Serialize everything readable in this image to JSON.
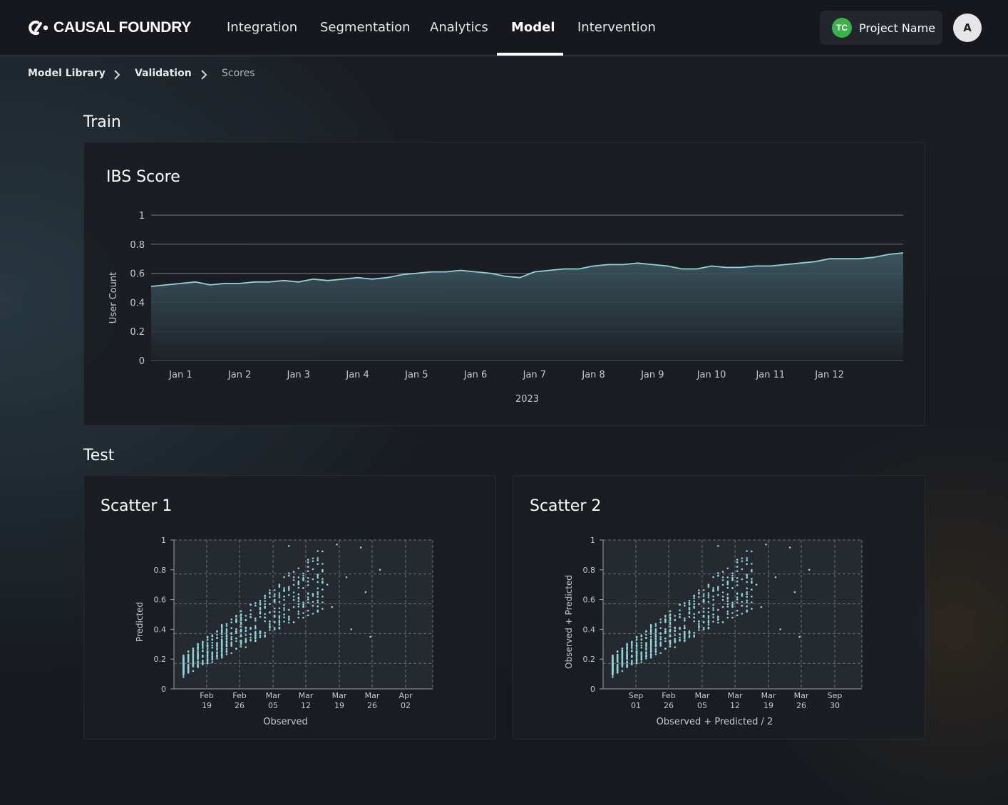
{
  "brand": {
    "name": "CAUSAL FOUNDRY",
    "logo_icon": "causal-foundry-logo"
  },
  "nav": {
    "items": [
      {
        "label": "Integration",
        "active": false
      },
      {
        "label": "Segmentation",
        "active": false
      },
      {
        "label": "Analytics",
        "active": false
      },
      {
        "label": "Model",
        "active": true
      },
      {
        "label": "Intervention",
        "active": false
      }
    ]
  },
  "project": {
    "badge": "TC",
    "name": "Project Name",
    "badge_color": "#38b249"
  },
  "user": {
    "avatar_initial": "A"
  },
  "breadcrumb": {
    "items": [
      "Model  Library",
      "Validation",
      "Scores"
    ],
    "separator_icon": "chevron-right-icon"
  },
  "sections": {
    "train_title": "Train",
    "test_title": "Test"
  },
  "colors": {
    "accent": "#8fd3d9",
    "card_bg": "#1a1d23",
    "nav_bg": "#16181d"
  },
  "chart_data": [
    {
      "type": "area",
      "title": "IBS Score",
      "xlabel": "2023",
      "ylabel": "User Count",
      "ylim": [
        0,
        1
      ],
      "yticks": [
        "0",
        "0.2",
        "0.4",
        "0.6",
        "0.8",
        "1"
      ],
      "xticks": [
        "Jan 1",
        "Jan 2",
        "Jan 3",
        "Jan 4",
        "Jan 5",
        "Jan 6",
        "Jan 7",
        "Jan 8",
        "Jan 9",
        "Jan 10",
        "Jan 11",
        "Jan 12"
      ],
      "grid": true,
      "x": [
        "2022-12-31T12:00",
        "2023-01-01T00:00",
        "2023-01-01T06:00",
        "2023-01-01T12:00",
        "2023-01-01T18:00",
        "2023-01-02T00:00",
        "2023-01-02T06:00",
        "2023-01-02T12:00",
        "2023-01-02T18:00",
        "2023-01-03T00:00",
        "2023-01-03T06:00",
        "2023-01-03T12:00",
        "2023-01-03T18:00",
        "2023-01-04T00:00",
        "2023-01-04T06:00",
        "2023-01-04T12:00",
        "2023-01-04T18:00",
        "2023-01-05T00:00",
        "2023-01-05T06:00",
        "2023-01-05T12:00",
        "2023-01-05T18:00",
        "2023-01-06T00:00",
        "2023-01-06T06:00",
        "2023-01-06T12:00",
        "2023-01-06T18:00",
        "2023-01-07T00:00",
        "2023-01-07T06:00",
        "2023-01-07T12:00",
        "2023-01-07T18:00",
        "2023-01-08T00:00",
        "2023-01-08T06:00",
        "2023-01-08T12:00",
        "2023-01-08T18:00",
        "2023-01-09T00:00",
        "2023-01-09T06:00",
        "2023-01-09T12:00",
        "2023-01-09T18:00",
        "2023-01-10T00:00",
        "2023-01-10T06:00",
        "2023-01-10T12:00",
        "2023-01-10T18:00",
        "2023-01-11T00:00",
        "2023-01-11T06:00",
        "2023-01-11T12:00",
        "2023-01-11T18:00",
        "2023-01-12T00:00",
        "2023-01-12T06:00",
        "2023-01-12T12:00",
        "2023-01-12T18:00",
        "2023-01-13T00:00",
        "2023-01-13T06:00"
      ],
      "values": [
        0.51,
        0.53,
        0.54,
        0.52,
        0.53,
        0.53,
        0.54,
        0.54,
        0.55,
        0.54,
        0.56,
        0.55,
        0.56,
        0.57,
        0.56,
        0.57,
        0.59,
        0.6,
        0.61,
        0.61,
        0.62,
        0.61,
        0.6,
        0.58,
        0.57,
        0.61,
        0.62,
        0.63,
        0.63,
        0.65,
        0.66,
        0.66,
        0.67,
        0.66,
        0.65,
        0.63,
        0.63,
        0.65,
        0.64,
        0.64,
        0.65,
        0.65,
        0.66,
        0.67,
        0.68,
        0.7,
        0.7,
        0.7,
        0.71,
        0.73,
        0.74
      ]
    },
    {
      "type": "scatter",
      "title": "Scatter 1",
      "xlabel": "Observed",
      "ylabel": "Predicted",
      "ylim": [
        0,
        1
      ],
      "yticks": [
        "0",
        "0.2",
        "0.4",
        "0.6",
        "0.8",
        "1"
      ],
      "xticks": [
        "Feb\n19",
        "Feb\n26",
        "Mar\n05",
        "Mar\n12",
        "Mar\n19",
        "Mar\n26",
        "Apr\n02"
      ],
      "xlim": [
        "2023-02-13",
        "2023-04-08"
      ],
      "grid": true,
      "points": [
        [
          "2023-02-15",
          0.08
        ],
        [
          "2023-02-17",
          0.12
        ],
        [
          "2023-02-18",
          0.15
        ],
        [
          "2023-02-19",
          0.17
        ],
        [
          "2023-02-20",
          0.2
        ],
        [
          "2023-02-21",
          0.18
        ],
        [
          "2023-02-22",
          0.22
        ],
        [
          "2023-02-23",
          0.21
        ],
        [
          "2023-02-24",
          0.25
        ],
        [
          "2023-02-25",
          0.24
        ],
        [
          "2023-02-26",
          0.27
        ],
        [
          "2023-02-27",
          0.3
        ],
        [
          "2023-02-28",
          0.28
        ],
        [
          "2023-03-01",
          0.33
        ],
        [
          "2023-03-02",
          0.35
        ],
        [
          "2023-03-03",
          0.38
        ],
        [
          "2023-03-04",
          0.36
        ],
        [
          "2023-03-05",
          0.42
        ],
        [
          "2023-03-06",
          0.45
        ],
        [
          "2023-03-07",
          0.43
        ],
        [
          "2023-03-08",
          0.5
        ],
        [
          "2023-03-09",
          0.47
        ],
        [
          "2023-03-10",
          0.55
        ],
        [
          "2023-03-11",
          0.52
        ],
        [
          "2023-03-12",
          0.58
        ],
        [
          "2023-03-13",
          0.6
        ],
        [
          "2023-03-14",
          0.56
        ],
        [
          "2023-03-15",
          0.65
        ],
        [
          "2023-03-16",
          0.62
        ],
        [
          "2023-03-17",
          0.7
        ],
        [
          "2023-03-18",
          0.55
        ],
        [
          "2023-03-19",
          0.97
        ],
        [
          "2023-03-21",
          0.75
        ],
        [
          "2023-03-22",
          0.4
        ],
        [
          "2023-03-24",
          0.95
        ],
        [
          "2023-03-25",
          0.65
        ],
        [
          "2023-03-26",
          0.35
        ],
        [
          "2023-03-28",
          0.8
        ],
        [
          "2023-03-09",
          0.96
        ],
        [
          "2023-03-13",
          0.85
        ]
      ]
    },
    {
      "type": "scatter",
      "title": "Scatter 2",
      "xlabel": "Observed + Predicted / 2",
      "ylabel": "Observed + Predicted",
      "ylim": [
        0,
        1
      ],
      "yticks": [
        "0",
        "0.2",
        "0.4",
        "0.6",
        "0.8",
        "1"
      ],
      "xticks": [
        "Sep\n01",
        "Feb\n26",
        "Mar\n05",
        "Mar\n12",
        "Mar\n19",
        "Mar\n26",
        "Sep\n30"
      ],
      "grid": true
    }
  ]
}
